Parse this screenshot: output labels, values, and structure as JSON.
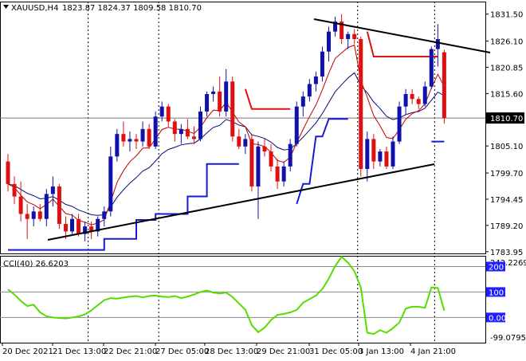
{
  "header": {
    "symbol_label": "XAUUSD,H4",
    "ohlc_text": "1823.87 1824.37 1809.58 1810.70"
  },
  "colors": {
    "bull": "#1010aa",
    "bear": "#dd1111",
    "price_ma": "#c00000",
    "slow_ma": "#0a0a70",
    "stop_blue": "#1a1ad6",
    "stop_red": "#e01010",
    "trend": "#000000",
    "cci": "#55dd00",
    "price_tag": "#000000",
    "level_tag": "#2020ff"
  },
  "indicator": {
    "label": "CCI(40) 26.6203",
    "top_scale": "242.2269",
    "bottom_scale": "-99.0795",
    "levels": [
      "200",
      "100",
      "0.00"
    ]
  },
  "x_labels": [
    "20 Dec 2021",
    "21 Dec 13:00",
    "22 Dec 21:00",
    "27 Dec 05:00",
    "28 Dec 13:00",
    "29 Dec 21:00",
    "31 Dec 05:00",
    "3 Jan 13:00",
    "4 Jan 21:00"
  ],
  "chart_data": [
    {
      "type": "candlestick",
      "title": "XAUUSD,H4",
      "ohlc_last": {
        "open": 1823.87,
        "high": 1824.37,
        "low": 1809.58,
        "close": 1810.7
      },
      "current_price": "1810.70",
      "y_ticks": [
        "1831.50",
        "1826.10",
        "1820.85",
        "1815.60",
        "1810.70",
        "1805.10",
        "1799.70",
        "1794.45",
        "1789.20",
        "1783.95"
      ],
      "ylim": [
        1783.6,
        1834.0
      ],
      "grid": false,
      "candles": [
        [
          1802.0,
          1803.5,
          1796.0,
          1797.5
        ],
        [
          1797.5,
          1799.0,
          1793.5,
          1795.0
        ],
        [
          1795.0,
          1798.0,
          1790.0,
          1791.5
        ],
        [
          1791.5,
          1793.5,
          1786.5,
          1790.5
        ],
        [
          1790.5,
          1793.0,
          1789.0,
          1792.0
        ],
        [
          1792.0,
          1793.5,
          1790.0,
          1790.5
        ],
        [
          1790.5,
          1796.5,
          1789.0,
          1795.5
        ],
        [
          1795.5,
          1799.0,
          1793.0,
          1797.0
        ],
        [
          1797.0,
          1797.5,
          1788.5,
          1789.5
        ],
        [
          1789.5,
          1791.0,
          1786.5,
          1788.0
        ],
        [
          1788.0,
          1791.5,
          1787.5,
          1790.5
        ],
        [
          1790.5,
          1791.5,
          1787.0,
          1787.5
        ],
        [
          1787.5,
          1790.0,
          1786.0,
          1789.0
        ],
        [
          1789.0,
          1790.0,
          1786.5,
          1788.0
        ],
        [
          1788.0,
          1791.0,
          1787.0,
          1790.5
        ],
        [
          1790.5,
          1793.0,
          1789.0,
          1792.0
        ],
        [
          1792.0,
          1805.0,
          1791.0,
          1803.0
        ],
        [
          1803.0,
          1808.5,
          1802.0,
          1807.5
        ],
        [
          1807.5,
          1810.0,
          1805.0,
          1806.0
        ],
        [
          1806.0,
          1808.0,
          1804.0,
          1806.5
        ],
        [
          1806.5,
          1807.5,
          1804.5,
          1806.0
        ],
        [
          1806.0,
          1810.0,
          1805.0,
          1808.5
        ],
        [
          1808.5,
          1809.5,
          1804.5,
          1805.0
        ],
        [
          1805.0,
          1812.0,
          1804.5,
          1811.0
        ],
        [
          1811.0,
          1814.0,
          1810.0,
          1813.0
        ],
        [
          1813.0,
          1813.5,
          1809.0,
          1810.0
        ],
        [
          1810.0,
          1810.5,
          1806.0,
          1807.5
        ],
        [
          1807.5,
          1809.5,
          1805.5,
          1808.5
        ],
        [
          1808.5,
          1810.5,
          1806.5,
          1807.0
        ],
        [
          1807.0,
          1809.0,
          1805.5,
          1806.5
        ],
        [
          1806.5,
          1813.0,
          1806.0,
          1812.0
        ],
        [
          1812.0,
          1816.0,
          1811.0,
          1815.5
        ],
        [
          1815.5,
          1817.0,
          1814.0,
          1816.0
        ],
        [
          1816.0,
          1819.0,
          1811.0,
          1812.0
        ],
        [
          1812.0,
          1820.5,
          1811.0,
          1818.0
        ],
        [
          1818.0,
          1819.0,
          1806.0,
          1807.0
        ],
        [
          1807.0,
          1808.5,
          1804.5,
          1805.0
        ],
        [
          1805.0,
          1807.5,
          1803.5,
          1806.5
        ],
        [
          1806.5,
          1807.5,
          1796.0,
          1797.0
        ],
        [
          1797.0,
          1806.0,
          1790.5,
          1805.0
        ],
        [
          1805.0,
          1806.5,
          1803.0,
          1804.0
        ],
        [
          1804.0,
          1805.5,
          1800.0,
          1801.0
        ],
        [
          1801.0,
          1802.5,
          1796.5,
          1798.0
        ],
        [
          1798.0,
          1802.0,
          1797.0,
          1801.0
        ],
        [
          1801.0,
          1806.5,
          1800.0,
          1805.5
        ],
        [
          1805.5,
          1814.0,
          1805.0,
          1813.0
        ],
        [
          1813.0,
          1816.0,
          1811.0,
          1815.0
        ],
        [
          1815.0,
          1818.5,
          1814.0,
          1817.5
        ],
        [
          1817.5,
          1820.0,
          1816.0,
          1819.0
        ],
        [
          1819.0,
          1825.0,
          1818.0,
          1824.0
        ],
        [
          1824.0,
          1829.0,
          1822.0,
          1828.0
        ],
        [
          1828.0,
          1831.0,
          1827.0,
          1830.0
        ],
        [
          1830.0,
          1831.5,
          1825.5,
          1826.5
        ],
        [
          1826.5,
          1828.0,
          1824.5,
          1827.5
        ],
        [
          1827.5,
          1828.5,
          1825.5,
          1826.5
        ],
        [
          1826.5,
          1827.0,
          1799.0,
          1800.5
        ],
        [
          1800.5,
          1808.0,
          1798.0,
          1806.5
        ],
        [
          1806.5,
          1807.5,
          1800.5,
          1802.0
        ],
        [
          1802.0,
          1804.5,
          1801.0,
          1804.0
        ],
        [
          1804.0,
          1805.0,
          1800.5,
          1801.0
        ],
        [
          1801.0,
          1807.0,
          1800.5,
          1806.0
        ],
        [
          1806.0,
          1814.0,
          1805.5,
          1813.0
        ],
        [
          1813.0,
          1816.5,
          1811.5,
          1815.5
        ],
        [
          1815.5,
          1816.5,
          1813.5,
          1814.5
        ],
        [
          1814.5,
          1815.0,
          1812.5,
          1813.5
        ],
        [
          1813.5,
          1818.0,
          1813.0,
          1817.0
        ],
        [
          1817.0,
          1825.0,
          1816.5,
          1824.5
        ],
        [
          1824.5,
          1829.5,
          1821.0,
          1826.5
        ],
        [
          1823.87,
          1824.37,
          1809.58,
          1810.7
        ]
      ]
    },
    {
      "type": "line",
      "title": "CCI(40) 26.6203",
      "ylim": [
        -99.0795,
        242.2269
      ],
      "levels": [
        200,
        100,
        0
      ],
      "values": [
        110,
        90,
        65,
        45,
        50,
        20,
        5,
        0,
        -2,
        -4,
        0,
        4,
        12,
        28,
        48,
        68,
        76,
        74,
        78,
        82,
        84,
        79,
        84,
        86,
        82,
        80,
        84,
        76,
        82,
        90,
        100,
        106,
        98,
        94,
        98,
        80,
        55,
        30,
        -30,
        -58,
        -40,
        -10,
        10,
        14,
        20,
        30,
        58,
        72,
        86,
        112,
        152,
        202,
        238,
        215,
        182,
        118,
        -60,
        -65,
        -50,
        -60,
        -42,
        -20,
        35,
        42,
        42,
        38,
        118,
        116,
        26.6203
      ]
    }
  ]
}
